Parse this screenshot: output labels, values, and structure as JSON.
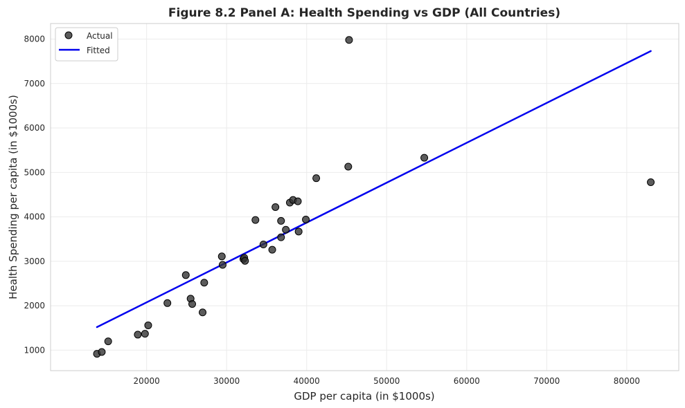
{
  "chart_data": {
    "type": "scatter",
    "title": "Figure 8.2 Panel A: Health Spending vs GDP (All Countries)",
    "xlabel": "GDP per capita (in $1000s)",
    "ylabel": "Health Spending per capita (in $1000s)",
    "xlim": [
      8000,
      86500
    ],
    "ylim": [
      540,
      8350
    ],
    "xticks": [
      20000,
      30000,
      40000,
      50000,
      60000,
      70000,
      80000
    ],
    "yticks": [
      1000,
      2000,
      3000,
      4000,
      5000,
      6000,
      7000,
      8000
    ],
    "grid": true,
    "legend_position": "upper-left",
    "series": [
      {
        "name": "Actual",
        "kind": "scatter",
        "color": "#333333",
        "x": [
          13800,
          14400,
          15200,
          18900,
          19800,
          20200,
          22600,
          24900,
          25500,
          25700,
          27000,
          27200,
          29400,
          29500,
          32100,
          32200,
          32300,
          33600,
          34600,
          35700,
          36100,
          36800,
          36800,
          37400,
          37900,
          38300,
          38900,
          39000,
          39900,
          41200,
          45200,
          45300,
          54700,
          83000
        ],
        "y": [
          920,
          960,
          1200,
          1350,
          1370,
          1560,
          2060,
          2690,
          2160,
          2040,
          1850,
          2520,
          3110,
          2920,
          3050,
          3080,
          3010,
          3930,
          3380,
          3260,
          4220,
          3540,
          3910,
          3710,
          4320,
          4380,
          4350,
          3670,
          3940,
          4870,
          5130,
          7980,
          5330,
          4780
        ]
      },
      {
        "name": "Fitted",
        "kind": "line",
        "color": "#0000ee",
        "x": [
          13800,
          83000
        ],
        "y": [
          1520,
          7730
        ]
      }
    ]
  }
}
